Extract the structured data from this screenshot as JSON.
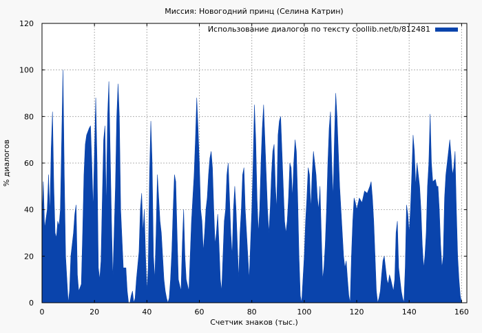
{
  "chart_data": {
    "type": "area",
    "title": "Миссия: Новогодний принц (Селина Катрин)",
    "xlabel": "Счетчик знаков (тыс.)",
    "ylabel": "% диалогов",
    "xlim": [
      0,
      162
    ],
    "ylim": [
      0,
      120
    ],
    "x_ticks": [
      0,
      20,
      40,
      60,
      80,
      100,
      120,
      140,
      160
    ],
    "y_ticks": [
      0,
      20,
      40,
      60,
      80,
      100,
      120
    ],
    "grid": true,
    "legend_position": "top-right",
    "series": [
      {
        "name": "Использование диалогов по тексту coollib.net/b/812481",
        "color": "#0a44ac",
        "points": [
          [
            0,
            35
          ],
          [
            0.5,
            52
          ],
          [
            1,
            32
          ],
          [
            2,
            40
          ],
          [
            2.5,
            55
          ],
          [
            3,
            38
          ],
          [
            3.5,
            66
          ],
          [
            4,
            82
          ],
          [
            4.5,
            50
          ],
          [
            5,
            30
          ],
          [
            5.5,
            28
          ],
          [
            6,
            35
          ],
          [
            6.5,
            33
          ],
          [
            7,
            40
          ],
          [
            7.5,
            70
          ],
          [
            8,
            100
          ],
          [
            8.5,
            55
          ],
          [
            9,
            20
          ],
          [
            10,
            0
          ],
          [
            10.5,
            5
          ],
          [
            11,
            20
          ],
          [
            12,
            30
          ],
          [
            12.5,
            38
          ],
          [
            13,
            42
          ],
          [
            13.5,
            12
          ],
          [
            14,
            5
          ],
          [
            15,
            8
          ],
          [
            15.5,
            30
          ],
          [
            16,
            55
          ],
          [
            16.5,
            68
          ],
          [
            17,
            72
          ],
          [
            18,
            75
          ],
          [
            18.5,
            76
          ],
          [
            19,
            60
          ],
          [
            19.5,
            40
          ],
          [
            20,
            65
          ],
          [
            20.5,
            88
          ],
          [
            21,
            60
          ],
          [
            21.5,
            15
          ],
          [
            22,
            10
          ],
          [
            22.5,
            18
          ],
          [
            23,
            45
          ],
          [
            23.5,
            70
          ],
          [
            24,
            76
          ],
          [
            24.5,
            40
          ],
          [
            25,
            80
          ],
          [
            25.5,
            95
          ],
          [
            26,
            65
          ],
          [
            26.5,
            35
          ],
          [
            27,
            10
          ],
          [
            27.5,
            30
          ],
          [
            28,
            50
          ],
          [
            28.5,
            80
          ],
          [
            29,
            94
          ],
          [
            29.5,
            80
          ],
          [
            30,
            40
          ],
          [
            31,
            15
          ],
          [
            32,
            15
          ],
          [
            32.5,
            5
          ],
          [
            33,
            0
          ],
          [
            33.5,
            0
          ],
          [
            34,
            3
          ],
          [
            34.5,
            5
          ],
          [
            35,
            0
          ],
          [
            35.5,
            2
          ],
          [
            36,
            10
          ],
          [
            37,
            22
          ],
          [
            37.5,
            40
          ],
          [
            38,
            47
          ],
          [
            38.5,
            30
          ],
          [
            39,
            40
          ],
          [
            39.5,
            20
          ],
          [
            40,
            5
          ],
          [
            40.5,
            15
          ],
          [
            41,
            55
          ],
          [
            41.5,
            78
          ],
          [
            42,
            60
          ],
          [
            42.5,
            20
          ],
          [
            43,
            10
          ],
          [
            43.5,
            30
          ],
          [
            44,
            55
          ],
          [
            44.5,
            45
          ],
          [
            45,
            35
          ],
          [
            45.5,
            30
          ],
          [
            46,
            20
          ],
          [
            46.5,
            10
          ],
          [
            47,
            5
          ],
          [
            47.5,
            2
          ],
          [
            48,
            0
          ],
          [
            48.5,
            2
          ],
          [
            49,
            10
          ],
          [
            49.5,
            22
          ],
          [
            50,
            40
          ],
          [
            50.5,
            55
          ],
          [
            51,
            52
          ],
          [
            51.5,
            30
          ],
          [
            52,
            10
          ],
          [
            53,
            5
          ],
          [
            53.5,
            25
          ],
          [
            54,
            40
          ],
          [
            54.5,
            20
          ],
          [
            55,
            10
          ],
          [
            56,
            5
          ],
          [
            56.5,
            20
          ],
          [
            57,
            35
          ],
          [
            57.5,
            45
          ],
          [
            58,
            55
          ],
          [
            58.5,
            70
          ],
          [
            59,
            88
          ],
          [
            59.5,
            75
          ],
          [
            60,
            60
          ],
          [
            60.5,
            40
          ],
          [
            61,
            35
          ],
          [
            61.5,
            22
          ],
          [
            62,
            30
          ],
          [
            62.5,
            40
          ],
          [
            63,
            45
          ],
          [
            63.5,
            55
          ],
          [
            64,
            62
          ],
          [
            64.5,
            65
          ],
          [
            65,
            58
          ],
          [
            65.5,
            40
          ],
          [
            66,
            25
          ],
          [
            66.5,
            30
          ],
          [
            67,
            38
          ],
          [
            67.5,
            25
          ],
          [
            68,
            10
          ],
          [
            68.5,
            5
          ],
          [
            69,
            20
          ],
          [
            69.5,
            35
          ],
          [
            70,
            40
          ],
          [
            70.5,
            55
          ],
          [
            71,
            60
          ],
          [
            71.5,
            45
          ],
          [
            72,
            30
          ],
          [
            72.5,
            20
          ],
          [
            73,
            40
          ],
          [
            73.5,
            50
          ],
          [
            74,
            40
          ],
          [
            74.5,
            25
          ],
          [
            75,
            10
          ],
          [
            75.5,
            30
          ],
          [
            76,
            40
          ],
          [
            76.5,
            55
          ],
          [
            77,
            58
          ],
          [
            77.5,
            40
          ],
          [
            78,
            30
          ],
          [
            78.5,
            20
          ],
          [
            79,
            10
          ],
          [
            79.5,
            25
          ],
          [
            80,
            40
          ],
          [
            80.5,
            60
          ],
          [
            81,
            85
          ],
          [
            81.5,
            70
          ],
          [
            82,
            45
          ],
          [
            82.5,
            30
          ],
          [
            83,
            40
          ],
          [
            83.5,
            60
          ],
          [
            84,
            75
          ],
          [
            84.5,
            85
          ],
          [
            85,
            70
          ],
          [
            85.5,
            55
          ],
          [
            86,
            40
          ],
          [
            86.5,
            30
          ],
          [
            87,
            40
          ],
          [
            87.5,
            55
          ],
          [
            88,
            65
          ],
          [
            88.5,
            68
          ],
          [
            89,
            50
          ],
          [
            89.5,
            40
          ],
          [
            90,
            72
          ],
          [
            90.5,
            78
          ],
          [
            91,
            80
          ],
          [
            91.5,
            65
          ],
          [
            92,
            50
          ],
          [
            92.5,
            35
          ],
          [
            93,
            30
          ],
          [
            93.5,
            35
          ],
          [
            94,
            45
          ],
          [
            94.5,
            60
          ],
          [
            95,
            58
          ],
          [
            95.5,
            45
          ],
          [
            96,
            60
          ],
          [
            96.5,
            70
          ],
          [
            97,
            65
          ],
          [
            97.5,
            45
          ],
          [
            98,
            20
          ],
          [
            98.5,
            3
          ],
          [
            99,
            0
          ],
          [
            99.5,
            10
          ],
          [
            100,
            20
          ],
          [
            100.5,
            35
          ],
          [
            101,
            45
          ],
          [
            101.5,
            58
          ],
          [
            102,
            55
          ],
          [
            102.5,
            40
          ],
          [
            103,
            55
          ],
          [
            103.5,
            65
          ],
          [
            104,
            60
          ],
          [
            104.5,
            55
          ],
          [
            105,
            45
          ],
          [
            105.5,
            40
          ],
          [
            106,
            50
          ],
          [
            106.5,
            30
          ],
          [
            107,
            10
          ],
          [
            107.5,
            15
          ],
          [
            108,
            25
          ],
          [
            108.5,
            40
          ],
          [
            109,
            60
          ],
          [
            109.5,
            75
          ],
          [
            110,
            82
          ],
          [
            110.5,
            60
          ],
          [
            111,
            45
          ],
          [
            111.5,
            70
          ],
          [
            112,
            90
          ],
          [
            112.5,
            80
          ],
          [
            113,
            65
          ],
          [
            113.5,
            50
          ],
          [
            114,
            40
          ],
          [
            114.5,
            30
          ],
          [
            115,
            20
          ],
          [
            115.5,
            15
          ],
          [
            116,
            18
          ],
          [
            116.5,
            10
          ],
          [
            117,
            3
          ],
          [
            117.5,
            0
          ],
          [
            118,
            20
          ],
          [
            118.5,
            35
          ],
          [
            119,
            45
          ],
          [
            119.5,
            43
          ],
          [
            120,
            40
          ],
          [
            121,
            45
          ],
          [
            122,
            43
          ],
          [
            123,
            48
          ],
          [
            124,
            47
          ],
          [
            125,
            50
          ],
          [
            125.5,
            52
          ],
          [
            126,
            45
          ],
          [
            126.5,
            35
          ],
          [
            127,
            20
          ],
          [
            127.5,
            5
          ],
          [
            128,
            0
          ],
          [
            128.5,
            2
          ],
          [
            129,
            5
          ],
          [
            129.5,
            12
          ],
          [
            130,
            18
          ],
          [
            130.5,
            20
          ],
          [
            131,
            15
          ],
          [
            131.5,
            10
          ],
          [
            132,
            8
          ],
          [
            132.5,
            12
          ],
          [
            133,
            10
          ],
          [
            134,
            5
          ],
          [
            134.5,
            10
          ],
          [
            135,
            30
          ],
          [
            135.5,
            35
          ],
          [
            136,
            15
          ],
          [
            136.5,
            10
          ],
          [
            137,
            5
          ],
          [
            137.5,
            2
          ],
          [
            138,
            0
          ],
          [
            138.5,
            15
          ],
          [
            139,
            42
          ],
          [
            139.5,
            38
          ],
          [
            140,
            30
          ],
          [
            140.5,
            40
          ],
          [
            141,
            55
          ],
          [
            141.5,
            72
          ],
          [
            142,
            65
          ],
          [
            142.5,
            50
          ],
          [
            143,
            60
          ],
          [
            143.5,
            55
          ],
          [
            144,
            50
          ],
          [
            144.5,
            40
          ],
          [
            145,
            25
          ],
          [
            145.5,
            15
          ],
          [
            146,
            20
          ],
          [
            146.5,
            30
          ],
          [
            147,
            50
          ],
          [
            147.5,
            60
          ],
          [
            148,
            81
          ],
          [
            148.5,
            60
          ],
          [
            149,
            52
          ],
          [
            150,
            53
          ],
          [
            150.5,
            50
          ],
          [
            151,
            50
          ],
          [
            151.5,
            40
          ],
          [
            152,
            25
          ],
          [
            152.5,
            15
          ],
          [
            153,
            20
          ],
          [
            153.5,
            45
          ],
          [
            154,
            55
          ],
          [
            154.5,
            60
          ],
          [
            155,
            65
          ],
          [
            155.5,
            70
          ],
          [
            156,
            63
          ],
          [
            156.5,
            55
          ],
          [
            157,
            58
          ],
          [
            157.5,
            65
          ],
          [
            158,
            40
          ],
          [
            158.5,
            20
          ],
          [
            159,
            10
          ],
          [
            159.5,
            3
          ],
          [
            160,
            0
          ]
        ]
      }
    ]
  }
}
